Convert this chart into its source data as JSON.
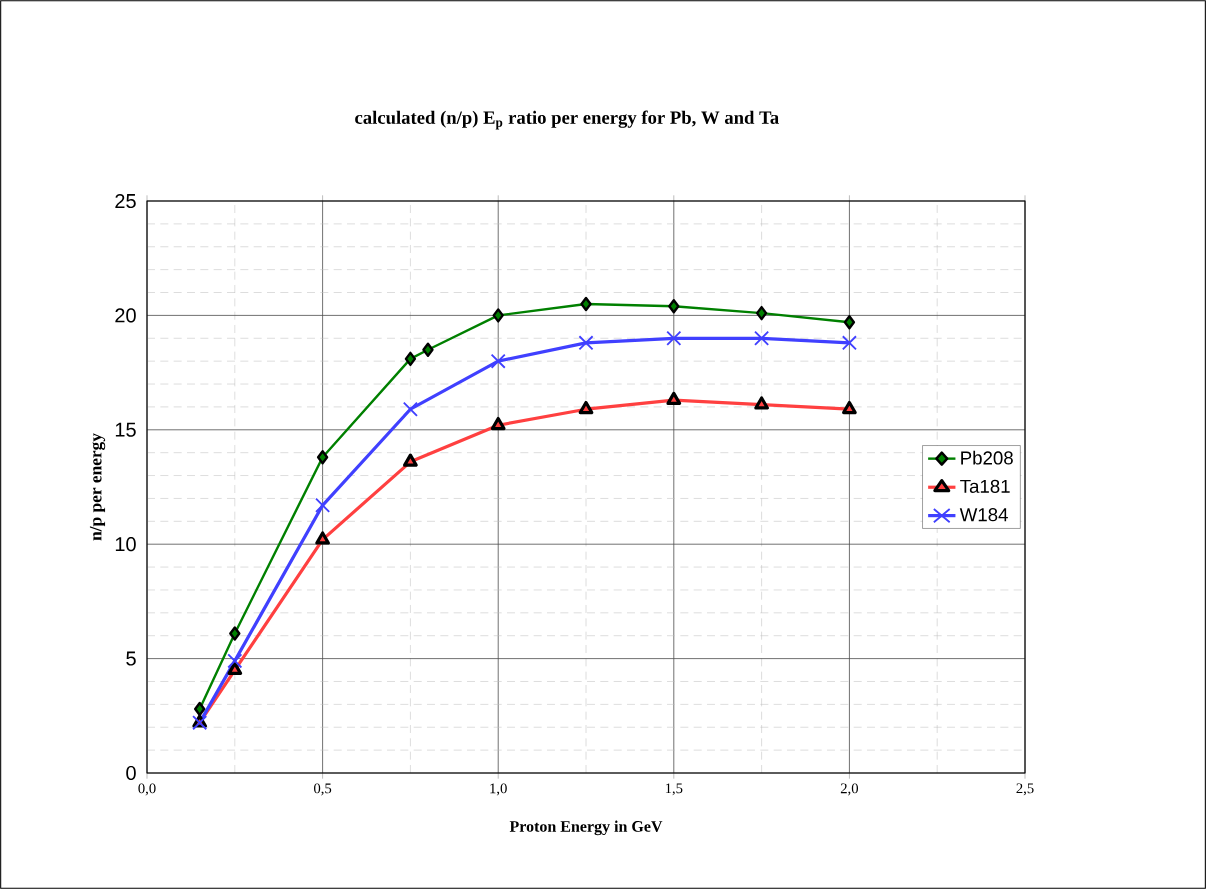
{
  "chart_data": {
    "type": "line",
    "title": "calculated (n/p) E$_{p}$ ratio per energy  for Pb, W and Ta",
    "xlabel": "Proton Energy in GeV",
    "ylabel": "n/p per energy",
    "xlim": [
      0,
      2.5
    ],
    "ylim": [
      0,
      25
    ],
    "xticks": [
      {
        "value": 0,
        "label": "0,0"
      },
      {
        "value": 0.5,
        "label": "0,5"
      },
      {
        "value": 1,
        "label": "1,0"
      },
      {
        "value": 1.5,
        "label": "1,5"
      },
      {
        "value": 2,
        "label": "2,0"
      },
      {
        "value": 2.5,
        "label": "2,5"
      }
    ],
    "yticks": [
      0,
      5,
      10,
      15,
      20,
      25
    ],
    "grid": true,
    "legend": "right",
    "series": [
      {
        "name": "Pb208",
        "color": "#008000",
        "marker": "diamond",
        "x": [
          0.15,
          0.25,
          0.5,
          0.75,
          0.8,
          1.0,
          1.25,
          1.5,
          1.75,
          2.0
        ],
        "values": [
          2.8,
          6.1,
          13.8,
          18.1,
          18.5,
          20.0,
          20.5,
          20.4,
          20.1,
          19.7
        ]
      },
      {
        "name": "Ta181",
        "color": "#ff4040",
        "marker": "triangle",
        "x": [
          0.15,
          0.25,
          0.5,
          0.75,
          1.0,
          1.25,
          1.5,
          1.75,
          2.0
        ],
        "values": [
          2.2,
          4.5,
          10.2,
          13.6,
          15.2,
          15.9,
          16.3,
          16.1,
          15.9
        ]
      },
      {
        "name": "W184",
        "color": "#4040ff",
        "marker": "cross",
        "x": [
          0.15,
          0.25,
          0.5,
          0.75,
          1.0,
          1.25,
          1.5,
          1.75,
          2.0
        ],
        "values": [
          2.2,
          4.9,
          11.7,
          15.9,
          18.0,
          18.8,
          19.0,
          19.0,
          18.8
        ]
      }
    ]
  }
}
